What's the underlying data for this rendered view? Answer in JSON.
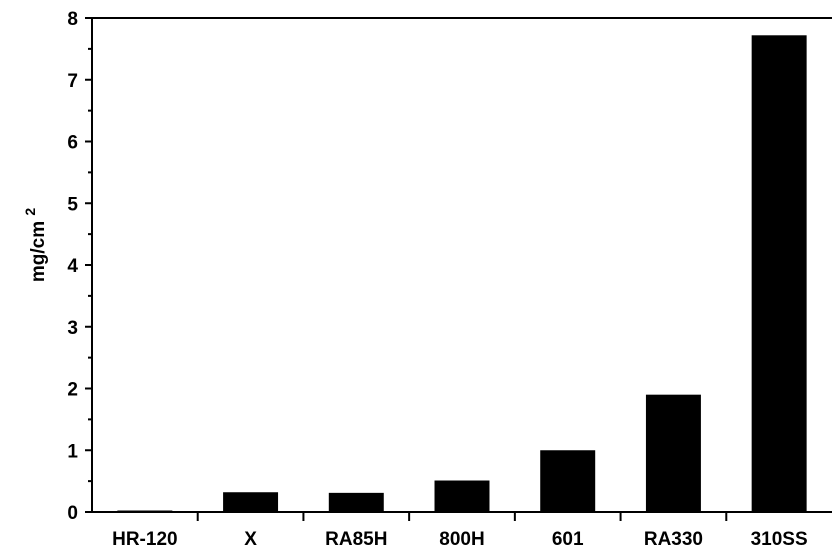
{
  "chart_data": {
    "type": "bar",
    "title": "",
    "xlabel": "",
    "ylabel": "mg/cm",
    "ylabel_superscript": "2",
    "categories": [
      "HR-120",
      "X",
      "RA85H",
      "800H",
      "601",
      "RA330",
      "310SS"
    ],
    "values": [
      0.02,
      0.32,
      0.31,
      0.51,
      1.0,
      1.9,
      7.72
    ],
    "ylim": [
      0,
      8
    ],
    "yticks": [
      "0",
      "1",
      "2",
      "3",
      "4",
      "5",
      "6",
      "7",
      "8"
    ],
    "grid": false,
    "legend": "none",
    "colors": {
      "bar": "#000000",
      "axis": "#000000",
      "background": "#ffffff"
    }
  }
}
